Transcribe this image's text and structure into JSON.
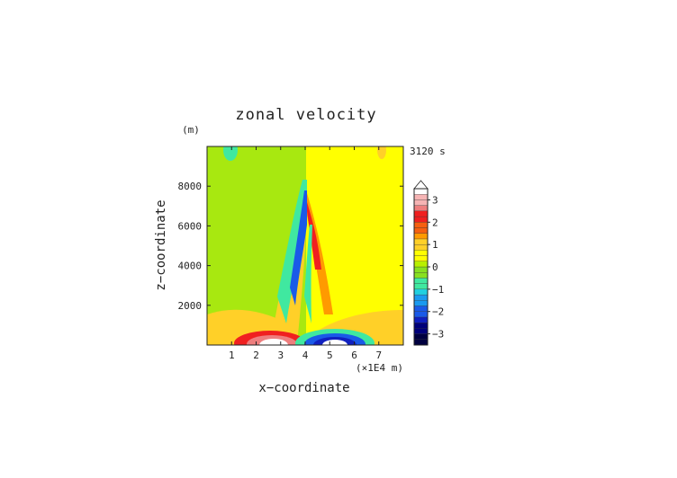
{
  "chart_data": {
    "type": "heatmap",
    "title": "zonal velocity",
    "time_label": "3120 s",
    "xlabel": "x−coordinate",
    "ylabel": "z−coordinate",
    "x_unit": "(×1E4 m)",
    "y_unit": "(m)",
    "xlim": [
      0,
      8
    ],
    "ylim": [
      0,
      10000
    ],
    "x_ticks": [
      {
        "value": 1,
        "label": "1"
      },
      {
        "value": 2,
        "label": "2"
      },
      {
        "value": 3,
        "label": "3"
      },
      {
        "value": 4,
        "label": "4"
      },
      {
        "value": 5,
        "label": "5"
      },
      {
        "value": 6,
        "label": "6"
      },
      {
        "value": 7,
        "label": "7"
      }
    ],
    "y_ticks": [
      {
        "value": 2000,
        "label": "2000"
      },
      {
        "value": 4000,
        "label": "4000"
      },
      {
        "value": 6000,
        "label": "6000"
      },
      {
        "value": 8000,
        "label": "8000"
      }
    ],
    "colorbar": {
      "min": -3.5,
      "max": 3.5,
      "step": 0.25,
      "extend": "max",
      "tick_labels": [
        {
          "value": 3,
          "label": "3"
        },
        {
          "value": 2,
          "label": "2"
        },
        {
          "value": 1,
          "label": "1"
        },
        {
          "value": 0,
          "label": "0"
        },
        {
          "value": -1,
          "label": "−1"
        },
        {
          "value": -2,
          "label": "−2"
        },
        {
          "value": -3,
          "label": "−3"
        }
      ],
      "colors": [
        "#ffffff",
        "#f6b4b4",
        "#ee7e7e",
        "#f02020",
        "#f66010",
        "#ff9a00",
        "#ffd028",
        "#ffff00",
        "#b8f000",
        "#88e020",
        "#40e8a0",
        "#20d0e0",
        "#1a9af0",
        "#1a5ae8",
        "#1020c0",
        "#00007a",
        "#000040"
      ]
    },
    "features": [
      {
        "name": "lower-left strong eastward jet",
        "x": 2.9,
        "z": 150,
        "u": 3.5
      },
      {
        "name": "lower-right strong westward jet",
        "x": 5.0,
        "z": 150,
        "u": -3.5
      },
      {
        "name": "left tilted negative band",
        "x": 3.6,
        "z": 5000,
        "u": -2.5
      },
      {
        "name": "right tilted positive band",
        "x": 4.1,
        "z": 5000,
        "u": 2.5
      }
    ]
  }
}
